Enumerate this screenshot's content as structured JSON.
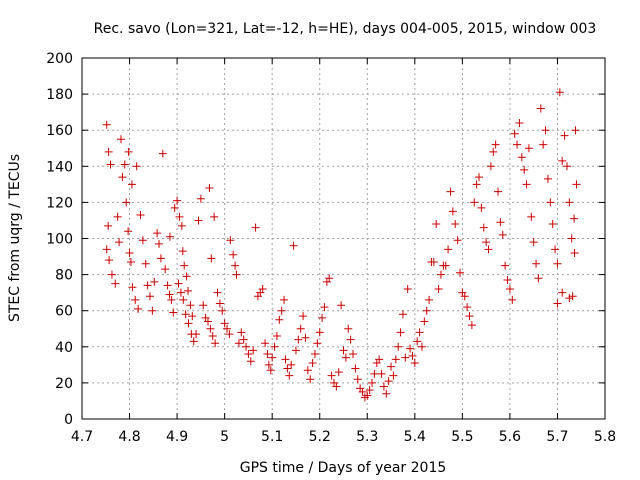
{
  "chart_data": {
    "type": "scatter",
    "title": "Rec. savo (Lon=321, Lat=-12, h=HE), days 004-005, 2015, window 003",
    "xlabel": "GPS time / Days of year 2015",
    "ylabel": "STEC from uqrg / TECUs",
    "xlim": [
      4.7,
      5.8
    ],
    "ylim": [
      0,
      200
    ],
    "xticks": [
      "4.7",
      "4.8",
      "4.9",
      "5",
      "5.1",
      "5.2",
      "5.3",
      "5.4",
      "5.5",
      "5.6",
      "5.7",
      "5.8"
    ],
    "yticks": [
      "0",
      "20",
      "40",
      "60",
      "80",
      "100",
      "120",
      "140",
      "160",
      "180",
      "200"
    ],
    "grid": true,
    "marker": "+",
    "color": "#cc0000",
    "series": [
      {
        "points": [
          [
            4.752,
            163
          ],
          [
            4.756,
            148
          ],
          [
            4.76,
            141
          ],
          [
            4.755,
            107
          ],
          [
            4.752,
            94
          ],
          [
            4.757,
            88
          ],
          [
            4.763,
            80
          ],
          [
            4.77,
            75
          ],
          [
            4.775,
            112
          ],
          [
            4.778,
            98
          ],
          [
            4.782,
            155
          ],
          [
            4.785,
            134
          ],
          [
            4.79,
            141
          ],
          [
            4.793,
            120
          ],
          [
            4.797,
            104
          ],
          [
            4.8,
            92
          ],
          [
            4.803,
            87
          ],
          [
            4.806,
            73
          ],
          [
            4.812,
            66
          ],
          [
            4.818,
            61
          ],
          [
            4.798,
            148
          ],
          [
            4.805,
            130
          ],
          [
            4.815,
            140
          ],
          [
            4.823,
            113
          ],
          [
            4.828,
            99
          ],
          [
            4.834,
            86
          ],
          [
            4.838,
            74
          ],
          [
            4.843,
            68
          ],
          [
            4.848,
            60
          ],
          [
            4.852,
            76
          ],
          [
            4.858,
            103
          ],
          [
            4.862,
            97
          ],
          [
            4.866,
            89
          ],
          [
            4.87,
            147
          ],
          [
            4.875,
            83
          ],
          [
            4.88,
            74
          ],
          [
            4.884,
            69
          ],
          [
            4.888,
            66
          ],
          [
            4.892,
            59
          ],
          [
            4.885,
            101
          ],
          [
            4.895,
            117
          ],
          [
            4.9,
            121
          ],
          [
            4.905,
            112
          ],
          [
            4.91,
            107
          ],
          [
            4.912,
            93
          ],
          [
            4.915,
            85
          ],
          [
            4.92,
            79
          ],
          [
            4.923,
            71
          ],
          [
            4.928,
            63
          ],
          [
            4.932,
            57
          ],
          [
            4.903,
            75
          ],
          [
            4.908,
            70
          ],
          [
            4.913,
            66
          ],
          [
            4.918,
            58
          ],
          [
            4.924,
            53
          ],
          [
            4.93,
            47
          ],
          [
            4.935,
            43
          ],
          [
            4.94,
            47
          ],
          [
            4.945,
            110
          ],
          [
            4.95,
            122
          ],
          [
            4.955,
            63
          ],
          [
            4.96,
            56
          ],
          [
            4.965,
            54
          ],
          [
            4.97,
            50
          ],
          [
            4.975,
            46
          ],
          [
            4.98,
            42
          ],
          [
            4.968,
            128
          ],
          [
            4.972,
            89
          ],
          [
            4.978,
            112
          ],
          [
            4.985,
            70
          ],
          [
            4.99,
            64
          ],
          [
            4.995,
            60
          ],
          [
            5.0,
            53
          ],
          [
            5.005,
            50
          ],
          [
            5.01,
            47
          ],
          [
            5.012,
            99
          ],
          [
            5.018,
            91
          ],
          [
            5.022,
            85
          ],
          [
            5.025,
            80
          ],
          [
            5.03,
            42
          ],
          [
            5.035,
            48
          ],
          [
            5.04,
            44
          ],
          [
            5.045,
            40
          ],
          [
            5.05,
            36
          ],
          [
            5.055,
            32
          ],
          [
            5.06,
            38
          ],
          [
            5.065,
            106
          ],
          [
            5.07,
            68
          ],
          [
            5.075,
            70
          ],
          [
            5.08,
            72
          ],
          [
            5.085,
            42
          ],
          [
            5.09,
            36
          ],
          [
            5.093,
            30
          ],
          [
            5.097,
            27
          ],
          [
            5.1,
            34
          ],
          [
            5.105,
            40
          ],
          [
            5.11,
            46
          ],
          [
            5.115,
            55
          ],
          [
            5.12,
            60
          ],
          [
            5.125,
            66
          ],
          [
            5.128,
            33
          ],
          [
            5.132,
            28
          ],
          [
            5.136,
            24
          ],
          [
            5.14,
            30
          ],
          [
            5.145,
            96
          ],
          [
            5.15,
            38
          ],
          [
            5.155,
            44
          ],
          [
            5.16,
            50
          ],
          [
            5.165,
            57
          ],
          [
            5.17,
            45
          ],
          [
            5.175,
            27
          ],
          [
            5.18,
            22
          ],
          [
            5.185,
            31
          ],
          [
            5.19,
            36
          ],
          [
            5.195,
            42
          ],
          [
            5.2,
            48
          ],
          [
            5.205,
            56
          ],
          [
            5.21,
            62
          ],
          [
            5.215,
            76
          ],
          [
            5.22,
            78
          ],
          [
            5.225,
            24
          ],
          [
            5.23,
            20
          ],
          [
            5.235,
            18
          ],
          [
            5.24,
            26
          ],
          [
            5.245,
            63
          ],
          [
            5.25,
            38
          ],
          [
            5.255,
            34
          ],
          [
            5.26,
            50
          ],
          [
            5.265,
            44
          ],
          [
            5.27,
            36
          ],
          [
            5.275,
            28
          ],
          [
            5.28,
            22
          ],
          [
            5.285,
            17
          ],
          [
            5.29,
            15
          ],
          [
            5.295,
            12
          ],
          [
            5.3,
            13
          ],
          [
            5.305,
            16
          ],
          [
            5.31,
            20
          ],
          [
            5.315,
            25
          ],
          [
            5.32,
            31
          ],
          [
            5.325,
            33
          ],
          [
            5.33,
            25
          ],
          [
            5.335,
            18
          ],
          [
            5.34,
            14
          ],
          [
            5.345,
            21
          ],
          [
            5.35,
            29
          ],
          [
            5.355,
            24
          ],
          [
            5.36,
            33
          ],
          [
            5.365,
            40
          ],
          [
            5.37,
            48
          ],
          [
            5.375,
            58
          ],
          [
            5.38,
            34
          ],
          [
            5.385,
            72
          ],
          [
            5.39,
            39
          ],
          [
            5.395,
            35
          ],
          [
            5.4,
            31
          ],
          [
            5.405,
            43
          ],
          [
            5.41,
            48
          ],
          [
            5.415,
            40
          ],
          [
            5.42,
            54
          ],
          [
            5.425,
            60
          ],
          [
            5.43,
            66
          ],
          [
            5.435,
            87
          ],
          [
            5.44,
            87
          ],
          [
            5.445,
            108
          ],
          [
            5.45,
            72
          ],
          [
            5.455,
            80
          ],
          [
            5.46,
            85
          ],
          [
            5.465,
            85
          ],
          [
            5.47,
            94
          ],
          [
            5.475,
            126
          ],
          [
            5.48,
            115
          ],
          [
            5.485,
            108
          ],
          [
            5.49,
            99
          ],
          [
            5.495,
            81
          ],
          [
            5.5,
            70
          ],
          [
            5.505,
            68
          ],
          [
            5.51,
            62
          ],
          [
            5.515,
            57
          ],
          [
            5.52,
            52
          ],
          [
            5.525,
            120
          ],
          [
            5.53,
            130
          ],
          [
            5.535,
            134
          ],
          [
            5.54,
            117
          ],
          [
            5.545,
            106
          ],
          [
            5.55,
            98
          ],
          [
            5.555,
            94
          ],
          [
            5.56,
            140
          ],
          [
            5.565,
            148
          ],
          [
            5.57,
            152
          ],
          [
            5.575,
            126
          ],
          [
            5.58,
            109
          ],
          [
            5.585,
            102
          ],
          [
            5.59,
            85
          ],
          [
            5.595,
            77
          ],
          [
            5.6,
            72
          ],
          [
            5.605,
            66
          ],
          [
            5.61,
            158
          ],
          [
            5.615,
            152
          ],
          [
            5.62,
            164
          ],
          [
            5.625,
            145
          ],
          [
            5.63,
            138
          ],
          [
            5.635,
            130
          ],
          [
            5.64,
            150
          ],
          [
            5.645,
            112
          ],
          [
            5.65,
            98
          ],
          [
            5.655,
            86
          ],
          [
            5.66,
            78
          ],
          [
            5.665,
            172
          ],
          [
            5.67,
            152
          ],
          [
            5.675,
            160
          ],
          [
            5.68,
            133
          ],
          [
            5.685,
            120
          ],
          [
            5.69,
            108
          ],
          [
            5.695,
            94
          ],
          [
            5.7,
            86
          ],
          [
            5.705,
            181
          ],
          [
            5.71,
            143
          ],
          [
            5.715,
            157
          ],
          [
            5.72,
            140
          ],
          [
            5.725,
            120
          ],
          [
            5.73,
            100
          ],
          [
            5.735,
            111
          ],
          [
            5.74,
            130
          ],
          [
            5.738,
            160
          ],
          [
            5.736,
            92
          ],
          [
            5.732,
            68
          ],
          [
            5.725,
            67
          ],
          [
            5.71,
            70
          ],
          [
            5.7,
            64
          ]
        ]
      }
    ]
  }
}
